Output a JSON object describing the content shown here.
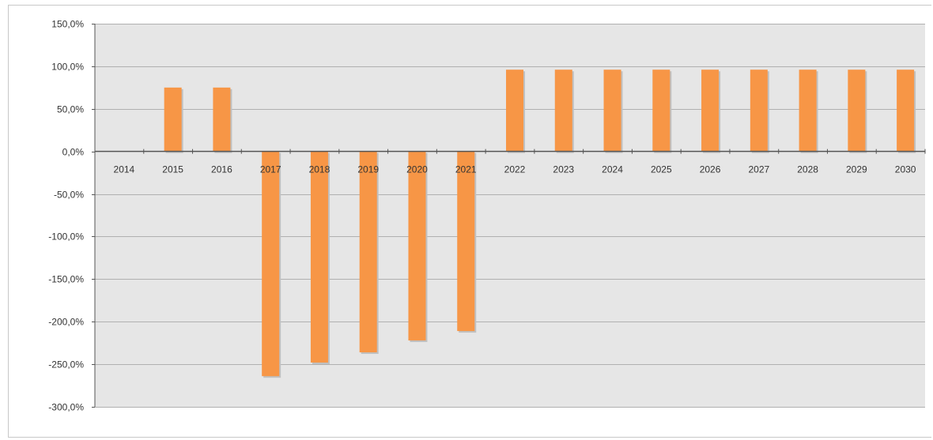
{
  "chart_data": {
    "type": "bar",
    "title": "",
    "xlabel": "",
    "ylabel": "",
    "categories": [
      "2014",
      "2015",
      "2016",
      "2017",
      "2018",
      "2019",
      "2020",
      "2021",
      "2022",
      "2023",
      "2024",
      "2025",
      "2026",
      "2027",
      "2028",
      "2029",
      "2030"
    ],
    "series": [
      {
        "values": [
          0,
          75,
          75,
          -264,
          -248,
          -236,
          -222,
          -211,
          96,
          96,
          96,
          96,
          96,
          96,
          96,
          96,
          96
        ]
      }
    ],
    "ylim": [
      -300,
      150
    ],
    "yticks": [
      150,
      100,
      50,
      0,
      -50,
      -100,
      -150,
      -200,
      -250,
      -300
    ],
    "ytick_labels": [
      "150,0%",
      "100,0%",
      "50,0%",
      "0,0%",
      "-50,0%",
      "-100,0%",
      "-150,0%",
      "-200,0%",
      "-250,0%",
      "-300,0%"
    ],
    "grid": true,
    "legend": "none",
    "colors": {
      "bar": "#f79646",
      "bar_shadow": "#c0c0c0",
      "plot_background": "#e6e6e6",
      "gridline": "#b0b0b0",
      "axis": "#555555"
    }
  }
}
